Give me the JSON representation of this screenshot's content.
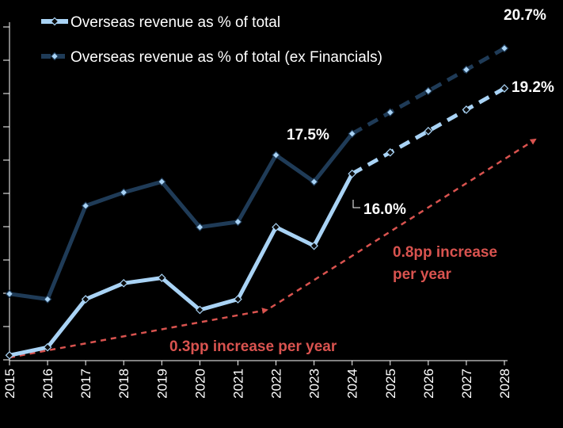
{
  "chart_data": {
    "type": "line",
    "title": "",
    "xlabel": "",
    "ylabel": "",
    "x": [
      "2015",
      "2016",
      "2017",
      "2018",
      "2019",
      "2020",
      "2021",
      "2022",
      "2023",
      "2024",
      "2025",
      "2026",
      "2027",
      "2028"
    ],
    "ylim": [
      9.0,
      21.5
    ],
    "grid": false,
    "legend_position": "top-left",
    "series": [
      {
        "name": "Overseas revenue as % of total",
        "color": "#a9d3f5",
        "marker": "diamond",
        "values": [
          9.2,
          9.5,
          11.3,
          11.9,
          12.1,
          10.9,
          11.3,
          14.0,
          13.3,
          16.0,
          16.8,
          17.6,
          18.4,
          19.2
        ],
        "projected_from_index": 9
      },
      {
        "name": "Overseas revenue as % of total (ex Financials)",
        "color": "#1f3b57",
        "marker": "diamond",
        "values": [
          11.5,
          11.3,
          14.8,
          15.3,
          15.7,
          14.0,
          14.2,
          16.7,
          15.7,
          17.5,
          18.3,
          19.1,
          19.9,
          20.7
        ],
        "projected_from_index": 9
      }
    ],
    "data_labels": [
      {
        "text": "17.5%",
        "x": "2024",
        "series": 1
      },
      {
        "text": "16.0%",
        "x": "2024",
        "series": 0
      },
      {
        "text": "20.7%",
        "x": "2028",
        "series": 1
      },
      {
        "text": "19.2%",
        "x": "2028",
        "series": 0
      }
    ],
    "annotations": [
      {
        "text": "0.3pp increase per year",
        "color": "#d9534f"
      },
      {
        "text": "0.8pp increase",
        "color": "#d9534f"
      },
      {
        "text": "per year",
        "color": "#d9534f"
      }
    ]
  }
}
